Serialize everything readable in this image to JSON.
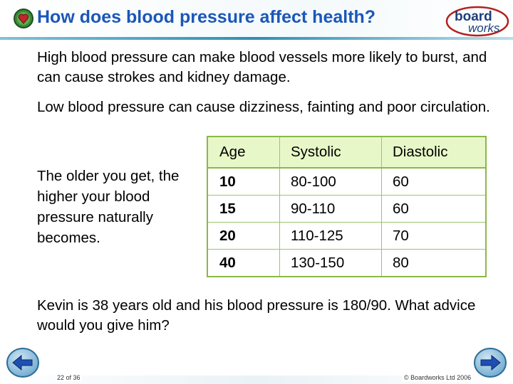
{
  "slide": {
    "title": "How does blood pressure affect health?",
    "logo": {
      "line1": "board",
      "line2": "works"
    },
    "paragraphs": {
      "high": "High blood pressure can make blood vessels more likely to burst, and can cause strokes and kidney damage.",
      "low": "Low blood pressure can cause dizziness, fainting and poor circulation.",
      "age": "The older you get, the higher your blood pressure naturally becomes.",
      "kevin": "Kevin is 38 years old and his blood pressure is 180/90. What advice would you give him?"
    },
    "table": {
      "headers": [
        "Age",
        "Systolic",
        "Diastolic"
      ],
      "rows": [
        [
          "10",
          "80-100",
          "60"
        ],
        [
          "15",
          "90-110",
          "60"
        ],
        [
          "20",
          "110-125",
          "70"
        ],
        [
          "40",
          "130-150",
          "80"
        ]
      ]
    },
    "footer": {
      "slide_number": "22 of 36",
      "copyright": "© Boardworks Ltd 2006"
    },
    "colors": {
      "title": "#1a57b8",
      "table_header_bg": "#e8f7c8",
      "table_border": "#8ab84a"
    },
    "icons": {
      "title_icon": "heart-globe-icon",
      "prev": "arrow-left-icon",
      "next": "arrow-right-icon"
    }
  }
}
